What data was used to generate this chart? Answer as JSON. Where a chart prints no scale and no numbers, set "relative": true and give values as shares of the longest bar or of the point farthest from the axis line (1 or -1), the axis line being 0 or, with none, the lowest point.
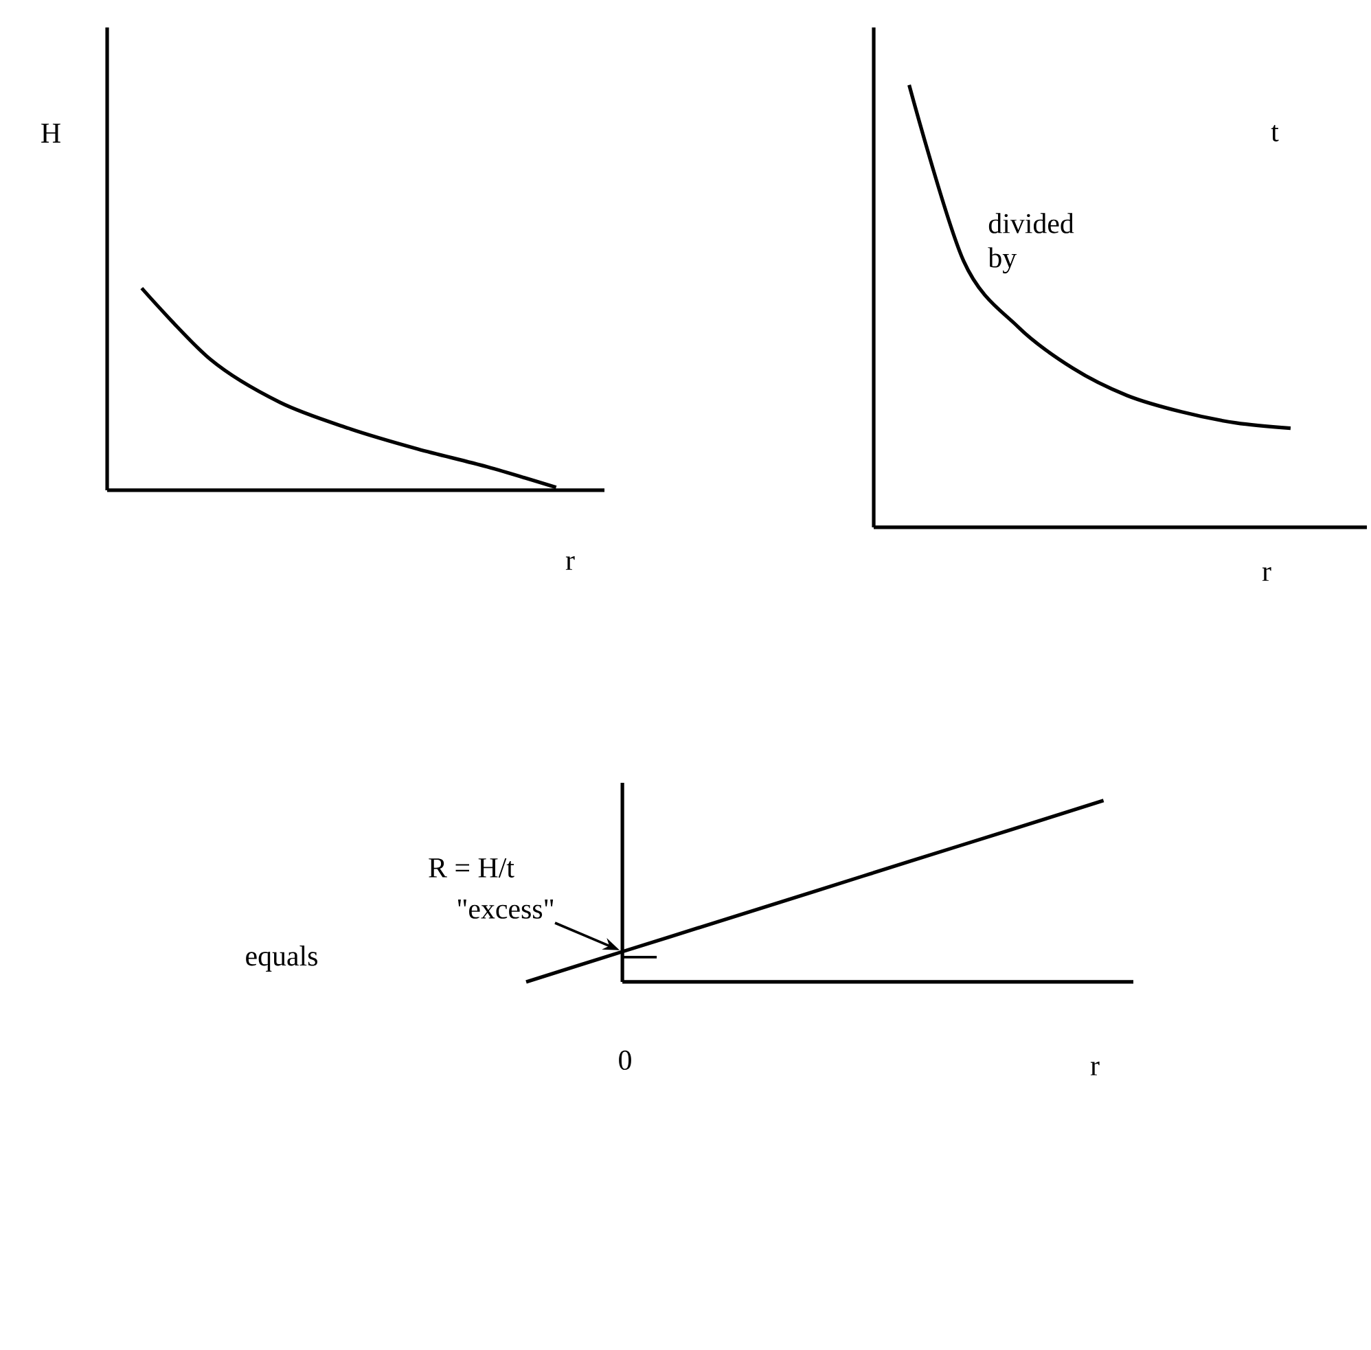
{
  "chart_data": [
    {
      "type": "line",
      "relative": true,
      "ylabel": "H",
      "xlabel": "r",
      "color": "#000000",
      "categories": [
        null,
        null,
        null,
        null,
        null,
        null,
        null
      ],
      "values": [
        1,
        0.646,
        0.435,
        0.306,
        0.204,
        0.116,
        0.014
      ]
    },
    {
      "type": "line",
      "relative": true,
      "ylabel": "t",
      "xlabel": "r",
      "color": "#000000",
      "categories": [
        null,
        null,
        null,
        null,
        null,
        null,
        null,
        null
      ],
      "values": [
        1,
        0.602,
        0.453,
        0.36,
        0.298,
        0.261,
        0.236,
        0.224
      ],
      "annotations": [
        "divided by"
      ]
    },
    {
      "type": "line",
      "relative": true,
      "ylabel": "R = H/t",
      "xlabel": "r",
      "color": "#000000",
      "categories": [
        null,
        null,
        null,
        null,
        null,
        null,
        null
      ],
      "values": [
        0,
        0.167,
        0.333,
        0.5,
        0.667,
        0.833,
        1
      ],
      "annotations": [
        "equals",
        "0",
        "\"excess\""
      ]
    }
  ]
}
